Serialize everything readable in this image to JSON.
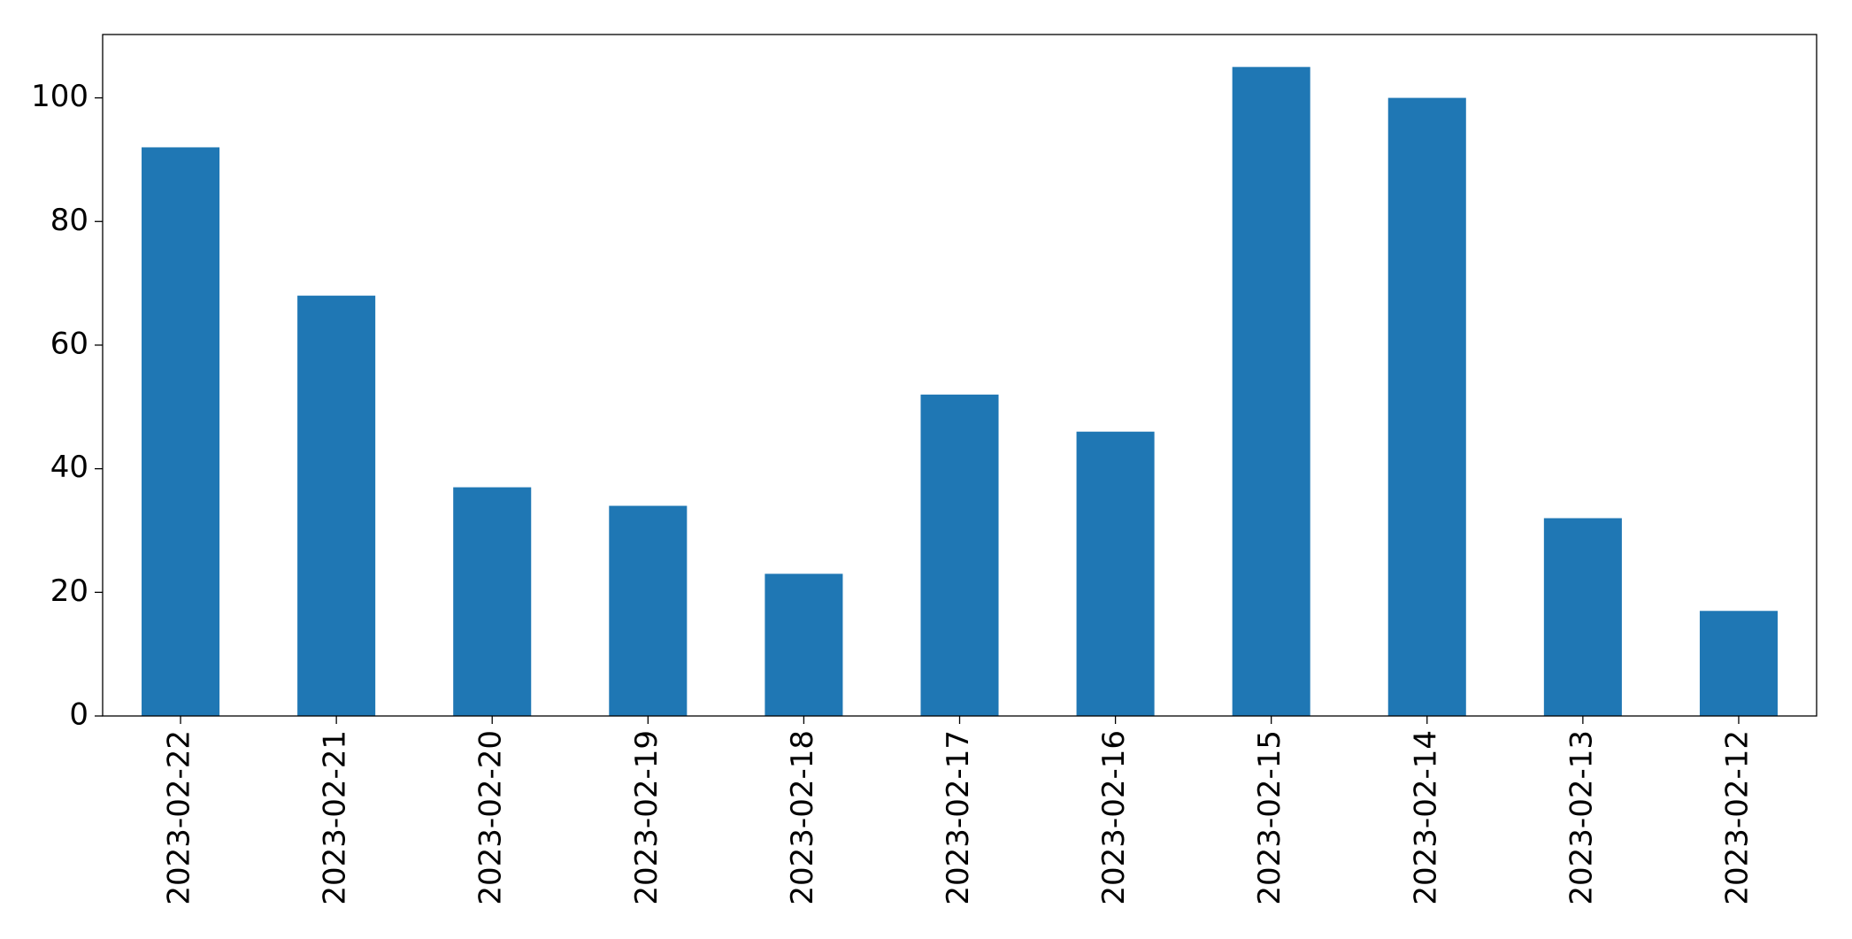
{
  "chart_data": {
    "type": "bar",
    "categories": [
      "2023-02-22",
      "2023-02-21",
      "2023-02-20",
      "2023-02-19",
      "2023-02-18",
      "2023-02-17",
      "2023-02-16",
      "2023-02-15",
      "2023-02-14",
      "2023-02-13",
      "2023-02-12"
    ],
    "values": [
      92,
      68,
      37,
      34,
      23,
      52,
      46,
      105,
      100,
      32,
      17
    ],
    "color": "#1f77b4",
    "ylim": [
      0,
      110.25
    ],
    "yticks": [
      0,
      20,
      40,
      60,
      80,
      100
    ],
    "grid": false
  }
}
